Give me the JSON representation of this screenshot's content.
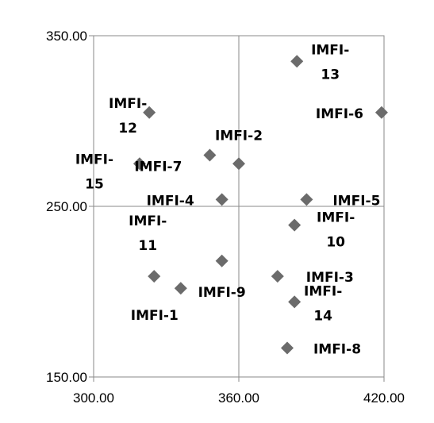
{
  "chart_data": {
    "type": "scatter",
    "title": "",
    "xlabel": "",
    "ylabel": "",
    "xlim": [
      300,
      420
    ],
    "ylim": [
      150,
      350
    ],
    "x_ticks": [
      "300.00",
      "360.00",
      "420.00"
    ],
    "y_ticks": [
      "150.00",
      "250.00",
      "350.00"
    ],
    "grid": true,
    "marker": "diamond",
    "marker_color": "#6b6b6b",
    "points": [
      {
        "label": "IMFI-1",
        "x": 336,
        "y": 202
      },
      {
        "label": "IMFI-2",
        "x": 360,
        "y": 275
      },
      {
        "label": "IMFI-3",
        "x": 376,
        "y": 209
      },
      {
        "label": "IMFI-4",
        "x": 353,
        "y": 254
      },
      {
        "label": "IMFI-5",
        "x": 388,
        "y": 254
      },
      {
        "label": "IMFI-6",
        "x": 419,
        "y": 305
      },
      {
        "label": "IMFI-7",
        "x": 348,
        "y": 280
      },
      {
        "label": "IMFI-8",
        "x": 380,
        "y": 167
      },
      {
        "label": "IMFI-9",
        "x": 353,
        "y": 218
      },
      {
        "label": "IMFI-10",
        "x": 383,
        "y": 239
      },
      {
        "label": "IMFI-11",
        "x": 325,
        "y": 209
      },
      {
        "label": "IMFI-12",
        "x": 323,
        "y": 305
      },
      {
        "label": "IMFI-13",
        "x": 384,
        "y": 335
      },
      {
        "label": "IMFI-14",
        "x": 383,
        "y": 194
      },
      {
        "label": "IMFI-15",
        "x": 319,
        "y": 275
      }
    ]
  }
}
